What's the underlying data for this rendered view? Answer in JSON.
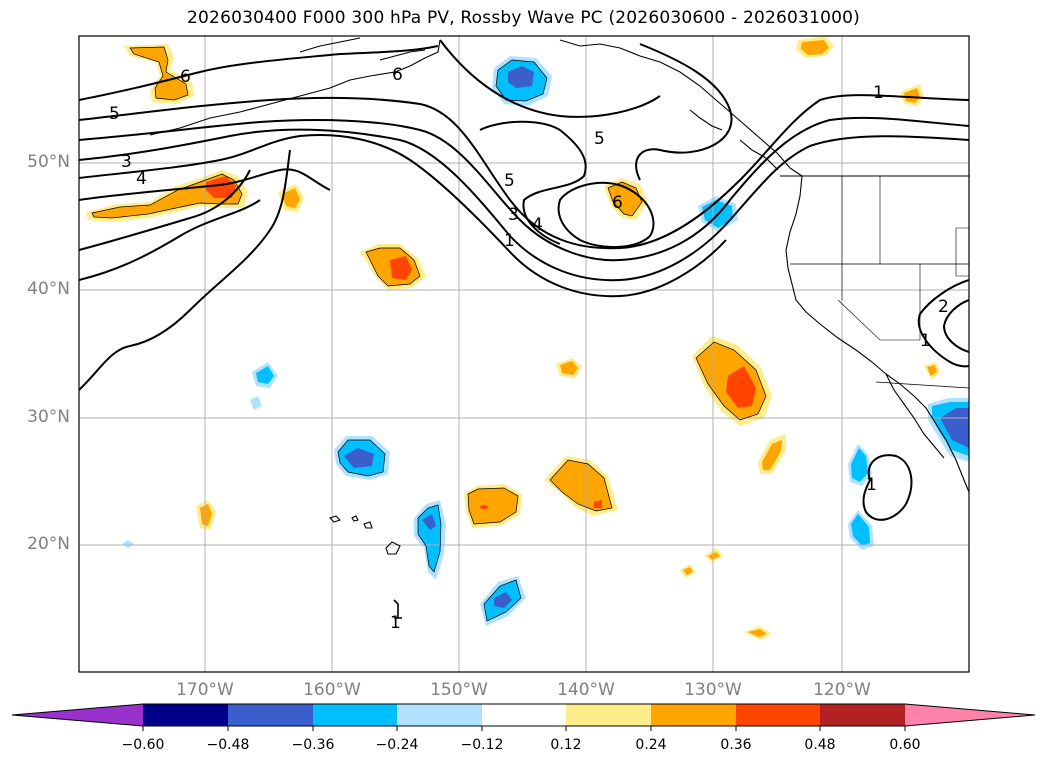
{
  "title": "2026030400 F000 300 hPa PV, Rossby Wave PC (2026030600 - 2026031000)",
  "lat_labels": [
    "50°N",
    "40°N",
    "30°N",
    "20°N"
  ],
  "lon_labels": [
    "170°W",
    "160°W",
    "150°W",
    "140°W",
    "130°W",
    "120°W"
  ],
  "colorbar": {
    "colors": [
      "#9932CC",
      "#00008B",
      "#3A5FCD",
      "#00BFFF",
      "#B0E2FF",
      "#FFFFFF",
      "#FFEC8B",
      "#FFA500",
      "#FF4500",
      "#B22222",
      "#FF82AB"
    ],
    "tick_labels": [
      "−0.60",
      "−0.48",
      "−0.36",
      "−0.24",
      "−0.12",
      "0.12",
      "0.24",
      "0.36",
      "0.48",
      "0.60"
    ]
  },
  "contour_labels": {
    "nw_6": "6",
    "west_5": "5",
    "west_3": "3",
    "west_4": "4",
    "alaska_6": "6",
    "trough_5": "5",
    "trough_3": "3",
    "trough_4": "4",
    "trough_1": "1",
    "central_5": "5",
    "central_6": "6",
    "east_1": "1",
    "coast_2": "2",
    "coast_1": "1",
    "baja_1": "1",
    "hawaii_1": "1"
  },
  "colors": {
    "contour": "#000000",
    "grid": "#b0b0b0",
    "axis_label": "#808080"
  }
}
